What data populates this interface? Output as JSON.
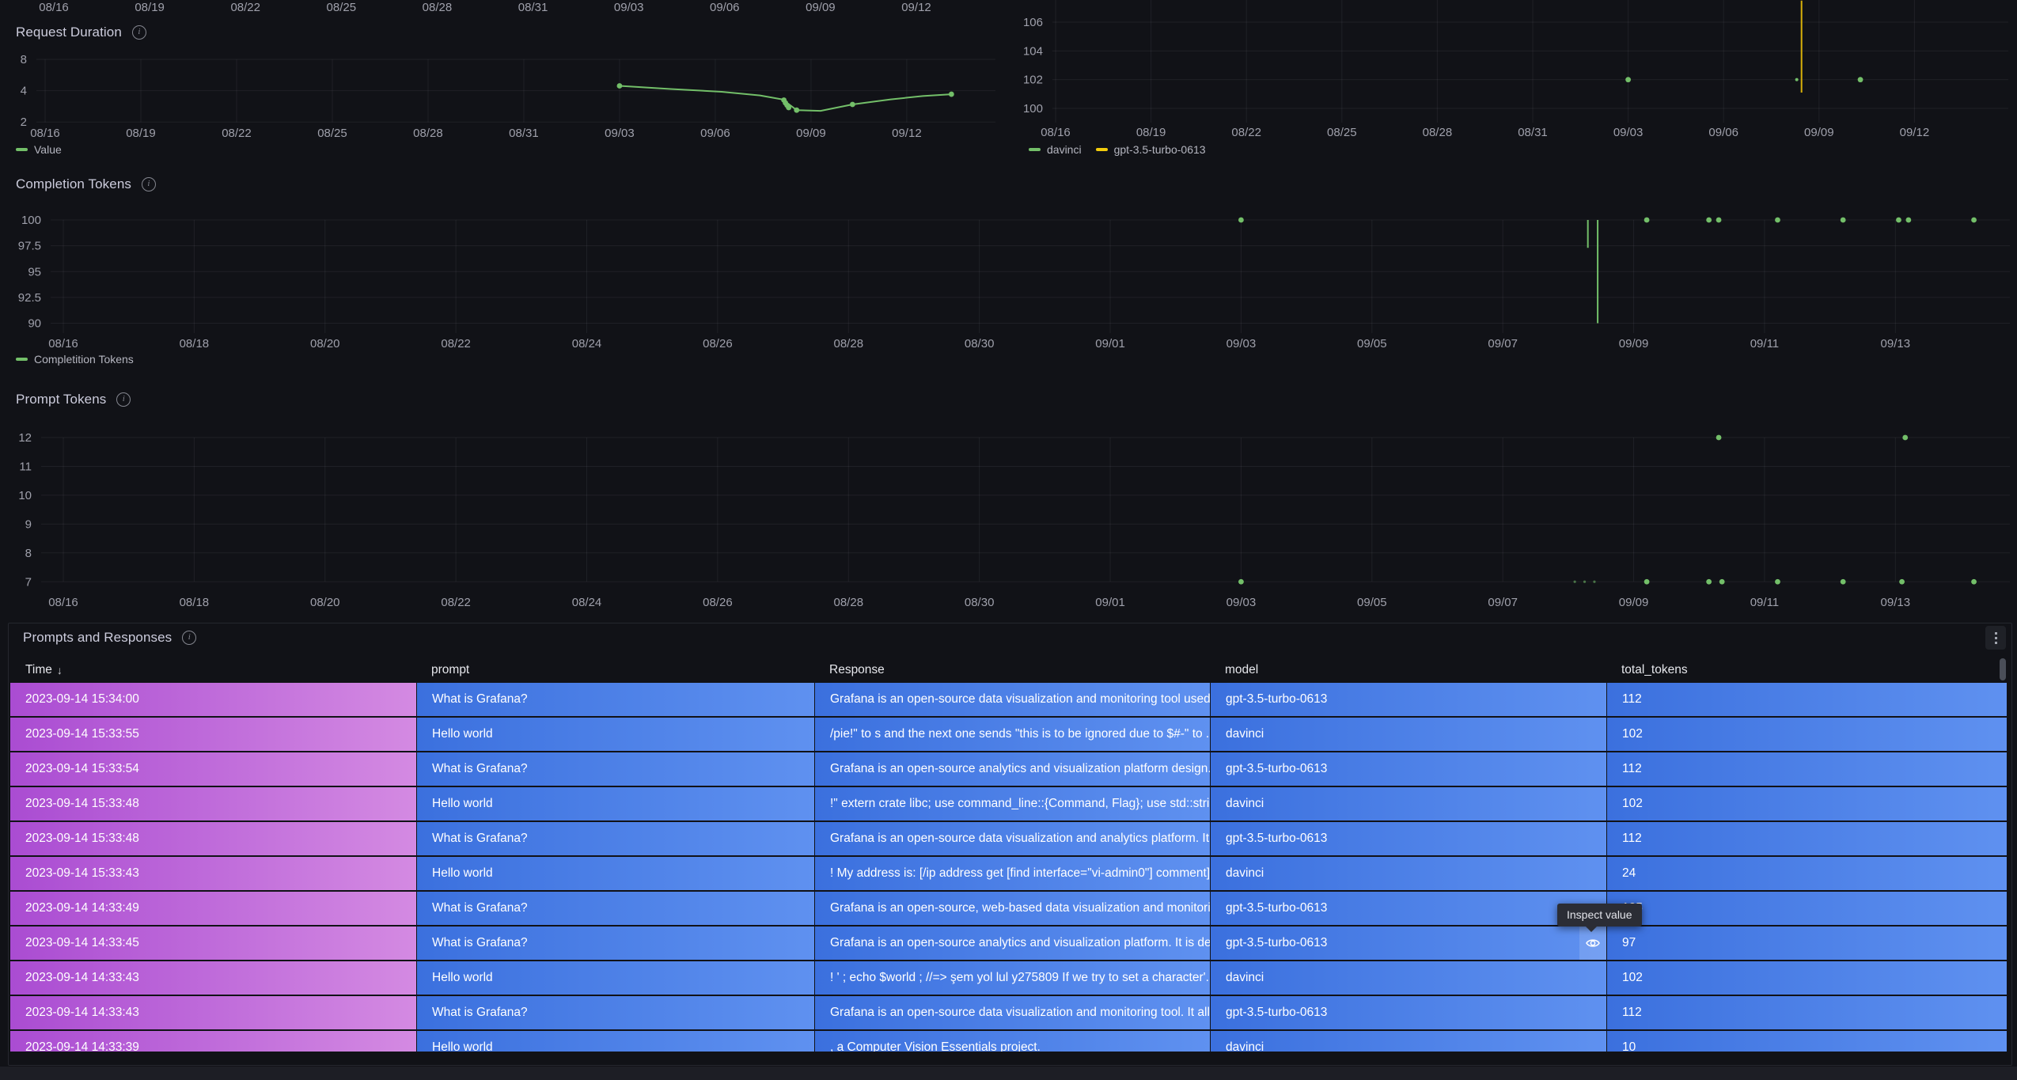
{
  "colors": {
    "green": "#73bf69",
    "yellow": "#f2cc0c",
    "yellow_line": "#d9b10a",
    "axis_text": "#9fa0ab",
    "title_text": "#ccccdc",
    "page_bg": "#111217",
    "time_cell_gradient": [
      "#aa4cd2",
      "#d48ae2"
    ],
    "blue_cell_gradient": [
      "#3b70de",
      "#5f91f0"
    ]
  },
  "top_axis": {
    "tick_days": [
      0,
      3,
      6,
      9,
      12,
      15,
      18,
      21,
      24,
      27
    ],
    "ticks": [
      "08/16",
      "08/19",
      "08/22",
      "08/25",
      "08/28",
      "08/31",
      "09/03",
      "09/06",
      "09/09",
      "09/12"
    ]
  },
  "panels": {
    "request_duration": {
      "title": "Request Duration",
      "legend": [
        {
          "label": "Value",
          "color": "#73bf69"
        }
      ]
    },
    "model_usage": {
      "legend": [
        {
          "label": "davinci",
          "color": "#73bf69"
        },
        {
          "label": "gpt-3.5-turbo-0613",
          "color": "#f2cc0c"
        }
      ]
    },
    "completion_tokens": {
      "title": "Completion Tokens",
      "legend": [
        {
          "label": "Completition Tokens",
          "color": "#73bf69"
        }
      ]
    },
    "prompt_tokens": {
      "title": "Prompt Tokens"
    },
    "table": {
      "title": "Prompts and Responses",
      "tooltip": "Inspect value",
      "inspect_row_index": 7,
      "inspect_col_index": 3,
      "columns": [
        {
          "label": "Time",
          "sort": "desc"
        },
        {
          "label": "prompt"
        },
        {
          "label": "Response"
        },
        {
          "label": "model"
        },
        {
          "label": "total_tokens"
        }
      ],
      "rows": [
        [
          "2023-09-14 15:34:00",
          "What is Grafana?",
          "Grafana is an open-source data visualization and monitoring tool used ...",
          "gpt-3.5-turbo-0613",
          "112"
        ],
        [
          "2023-09-14 15:33:55",
          "Hello world",
          "/pie!\" to s and the next one sends \"this is to be ignored due to $#-\" to ...",
          "davinci",
          "102"
        ],
        [
          "2023-09-14 15:33:54",
          "What is Grafana?",
          "Grafana is an open-source analytics and visualization platform design...",
          "gpt-3.5-turbo-0613",
          "112"
        ],
        [
          "2023-09-14 15:33:48",
          "Hello world",
          "!\" extern crate libc; use command_line::{Command, Flag}; use std::strin...",
          "davinci",
          "102"
        ],
        [
          "2023-09-14 15:33:48",
          "What is Grafana?",
          "Grafana is an open-source data visualization and analytics platform. It ...",
          "gpt-3.5-turbo-0613",
          "112"
        ],
        [
          "2023-09-14 15:33:43",
          "Hello world",
          "! My address is: [/ip address get [find interface=\"vi-admin0\"] comment]",
          "davinci",
          "24"
        ],
        [
          "2023-09-14 14:33:49",
          "What is Grafana?",
          "Grafana is an open-source, web-based data visualization and monitori...",
          "gpt-3.5-turbo-0613",
          "105"
        ],
        [
          "2023-09-14 14:33:45",
          "What is Grafana?",
          "Grafana is an open-source analytics and visualization platform. It is de...",
          "gpt-3.5-turbo-0613",
          "97"
        ],
        [
          "2023-09-14 14:33:43",
          "Hello world",
          "! ' ; echo $world ; //=> şem yol lul y275809 If we try to set a character'...",
          "davinci",
          "102"
        ],
        [
          "2023-09-14 14:33:43",
          "What is Grafana?",
          "Grafana is an open-source data visualization and monitoring tool. It all...",
          "gpt-3.5-turbo-0613",
          "112"
        ],
        [
          "2023-09-14 14:33:39",
          "Hello world",
          ", a Computer Vision Essentials project.",
          "davinci",
          "10"
        ]
      ]
    }
  },
  "chart_data": [
    {
      "id": "request-duration",
      "type": "line",
      "title": "Request Duration",
      "y_scale": "log2",
      "ylim": [
        2,
        8
      ],
      "y_ticks": [
        8,
        4,
        2
      ],
      "x_tick_days": [
        0,
        3,
        6,
        9,
        12,
        15,
        18,
        21,
        24,
        27
      ],
      "x_ticks": [
        "08/16",
        "08/19",
        "08/22",
        "08/25",
        "08/28",
        "08/31",
        "09/03",
        "09/06",
        "09/09",
        "09/12"
      ],
      "series": [
        {
          "name": "Value",
          "color": "#73bf69",
          "line": [
            [
              18,
              4.45
            ],
            [
              19.6,
              4.15
            ],
            [
              21.2,
              3.9
            ],
            [
              22.4,
              3.6
            ],
            [
              23.1,
              3.3
            ],
            [
              23.35,
              2.9
            ],
            [
              23.55,
              2.6
            ],
            [
              24.3,
              2.56
            ],
            [
              25.3,
              2.95
            ],
            [
              26.5,
              3.3
            ],
            [
              27.5,
              3.55
            ],
            [
              28.4,
              3.7
            ]
          ],
          "markers": [
            [
              18,
              4.45
            ],
            [
              23.15,
              3.25
            ],
            [
              23.2,
              3.05
            ],
            [
              23.25,
              2.9
            ],
            [
              23.3,
              2.75
            ],
            [
              23.55,
              2.6
            ],
            [
              25.3,
              2.95
            ],
            [
              28.4,
              3.7
            ]
          ]
        }
      ]
    },
    {
      "id": "model-usage",
      "type": "scatter",
      "title": "",
      "ylim": [
        98.8,
        107.5
      ],
      "y_ticks": [
        106,
        104,
        102,
        100
      ],
      "x_tick_days": [
        0,
        3,
        6,
        9,
        12,
        15,
        18,
        21,
        24,
        27
      ],
      "x_ticks": [
        "08/16",
        "08/19",
        "08/22",
        "08/25",
        "08/28",
        "08/31",
        "09/03",
        "09/06",
        "09/09",
        "09/12"
      ],
      "series": [
        {
          "name": "davinci",
          "color": "#73bf69",
          "markers": [
            [
              18,
              102
            ],
            [
              25.3,
              102
            ]
          ],
          "small_markers": [
            [
              23.3,
              102
            ]
          ]
        },
        {
          "name": "gpt-3.5-turbo-0613",
          "color": "#d9b10a",
          "vlines": [
            {
              "x": 23.45,
              "y1": 107.5,
              "y2": 101.1
            }
          ]
        }
      ]
    },
    {
      "id": "completion-tokens",
      "type": "scatter",
      "title": "Completion Tokens",
      "ylim": [
        89,
        101.8
      ],
      "y_ticks": [
        100,
        97.5,
        95,
        92.5,
        90
      ],
      "x_tick_days": [
        0,
        2,
        4,
        6,
        8,
        10,
        12,
        14,
        16,
        18,
        20,
        22,
        24,
        26,
        28
      ],
      "x_ticks": [
        "08/16",
        "08/18",
        "08/20",
        "08/22",
        "08/24",
        "08/26",
        "08/28",
        "08/30",
        "09/01",
        "09/03",
        "09/05",
        "09/07",
        "09/09",
        "09/11",
        "09/13"
      ],
      "series": [
        {
          "name": "Completition Tokens",
          "color": "#73bf69",
          "markers": [
            [
              18,
              100
            ],
            [
              24.2,
              100
            ],
            [
              25.15,
              100
            ],
            [
              25.3,
              100
            ],
            [
              26.2,
              100
            ],
            [
              27.2,
              100
            ],
            [
              28.05,
              100
            ],
            [
              28.2,
              100
            ],
            [
              29.2,
              100
            ]
          ],
          "vlines": [
            {
              "x": 23.3,
              "y1": 100,
              "y2": 97.3
            },
            {
              "x": 23.45,
              "y1": 100,
              "y2": 90
            }
          ]
        }
      ]
    },
    {
      "id": "prompt-tokens",
      "type": "scatter",
      "title": "Prompt Tokens",
      "ylim": [
        6.3,
        12.6
      ],
      "y_ticks": [
        12,
        11,
        10,
        9,
        8,
        7
      ],
      "x_tick_days": [
        0,
        2,
        4,
        6,
        8,
        10,
        12,
        14,
        16,
        18,
        20,
        22,
        24,
        26,
        28
      ],
      "x_ticks": [
        "08/16",
        "08/18",
        "08/20",
        "08/22",
        "08/24",
        "08/26",
        "08/28",
        "08/30",
        "09/01",
        "09/03",
        "09/05",
        "09/07",
        "09/09",
        "09/11",
        "09/13"
      ],
      "series": [
        {
          "name": "Prompt Tokens",
          "color": "#73bf69",
          "markers": [
            [
              18,
              7
            ],
            [
              24.2,
              7
            ],
            [
              25.15,
              7
            ],
            [
              25.35,
              7
            ],
            [
              26.2,
              7
            ],
            [
              27.2,
              7
            ],
            [
              28.1,
              7
            ],
            [
              29.2,
              7
            ],
            [
              25.3,
              12
            ],
            [
              28.15,
              12
            ]
          ],
          "faint_markers": [
            [
              23.1,
              7
            ],
            [
              23.25,
              7
            ],
            [
              23.4,
              7
            ]
          ]
        }
      ]
    }
  ]
}
